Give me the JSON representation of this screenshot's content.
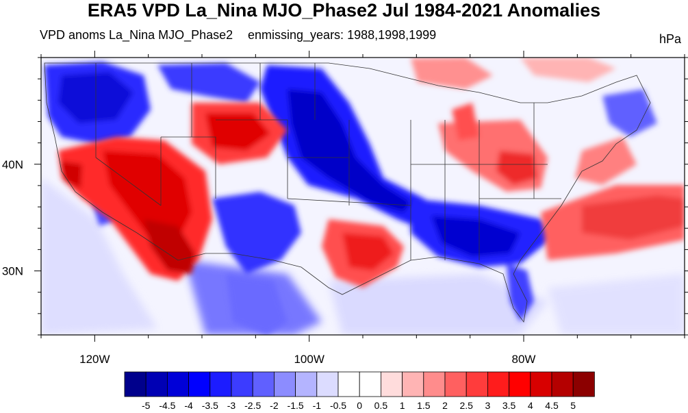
{
  "title": "ERA5 VPD La_Nina MJO_Phase2 Jul 1984-2021 Anomalies",
  "subtitle_left": "VPD anoms La_Nina MJO_Phase2",
  "subtitle_mid": "enmissing_years: 1988,1998,1999",
  "units": "hPa",
  "map": {
    "lon_range": [
      -125,
      -65
    ],
    "lat_range": [
      24,
      50
    ],
    "lon_ticks": [
      {
        "value": -120,
        "label": "120W"
      },
      {
        "value": -100,
        "label": "100W"
      },
      {
        "value": -80,
        "label": "80W"
      }
    ],
    "lat_ticks": [
      {
        "value": 40,
        "label": "40N"
      },
      {
        "value": 30,
        "label": "30N"
      }
    ]
  },
  "colorbar": {
    "labels": [
      "-5",
      "-4.5",
      "-4",
      "-3.5",
      "-3",
      "-2.5",
      "-2",
      "-1.5",
      "-1",
      "-0.5",
      "0",
      "0.5",
      "1",
      "1.5",
      "2",
      "2.5",
      "3",
      "3.5",
      "4",
      "4.5",
      "5"
    ],
    "colors": [
      "#00008c",
      "#0000b4",
      "#0000d8",
      "#0000ff",
      "#1c1cff",
      "#3c3cff",
      "#6060ff",
      "#8c8cff",
      "#b4b4ff",
      "#dcdcff",
      "#ffffff",
      "#ffffff",
      "#ffdcdc",
      "#ffb4b4",
      "#ff8c8c",
      "#ff6060",
      "#ff3c3c",
      "#ff1c1c",
      "#ff0000",
      "#d80000",
      "#b40000",
      "#8c0000"
    ]
  },
  "anomaly_regions": [
    {
      "name": "pacific-northwest-negative",
      "color": "#2c2cff"
    },
    {
      "name": "great-basin-positive",
      "color": "#ff2a2a"
    },
    {
      "name": "southwest-desert-positive",
      "color": "#c00000"
    },
    {
      "name": "northern-rockies-positive",
      "color": "#ff3c3c"
    },
    {
      "name": "great-plains-negative",
      "color": "#1c1cff"
    },
    {
      "name": "gulf-coast-negative",
      "color": "#2020ff"
    },
    {
      "name": "texas-positive",
      "color": "#ff5050"
    },
    {
      "name": "ohio-valley-positive",
      "color": "#ff7070"
    },
    {
      "name": "atlantic-positive",
      "color": "#ff6060"
    },
    {
      "name": "mexico-negative",
      "color": "#6a6aff"
    }
  ]
}
